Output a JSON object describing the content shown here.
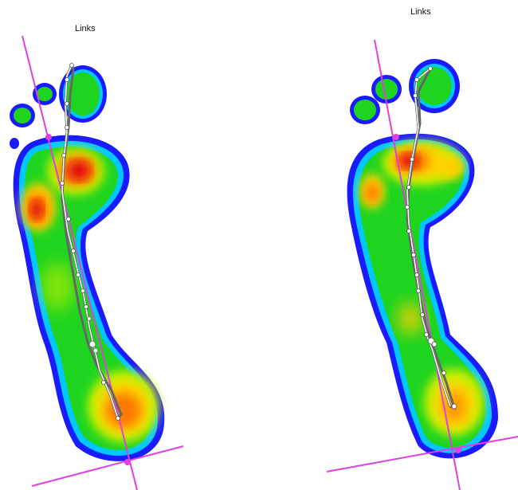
{
  "panels": [
    {
      "label": "Links"
    },
    {
      "label": "Links"
    }
  ],
  "colors": {
    "axis_line": "#e040e0",
    "pressure_scale": [
      "#1a1aff",
      "#00c8ff",
      "#1fd41f",
      "#c8f000",
      "#ffd000",
      "#ff7a00",
      "#e01010"
    ],
    "trace": "#666666"
  }
}
